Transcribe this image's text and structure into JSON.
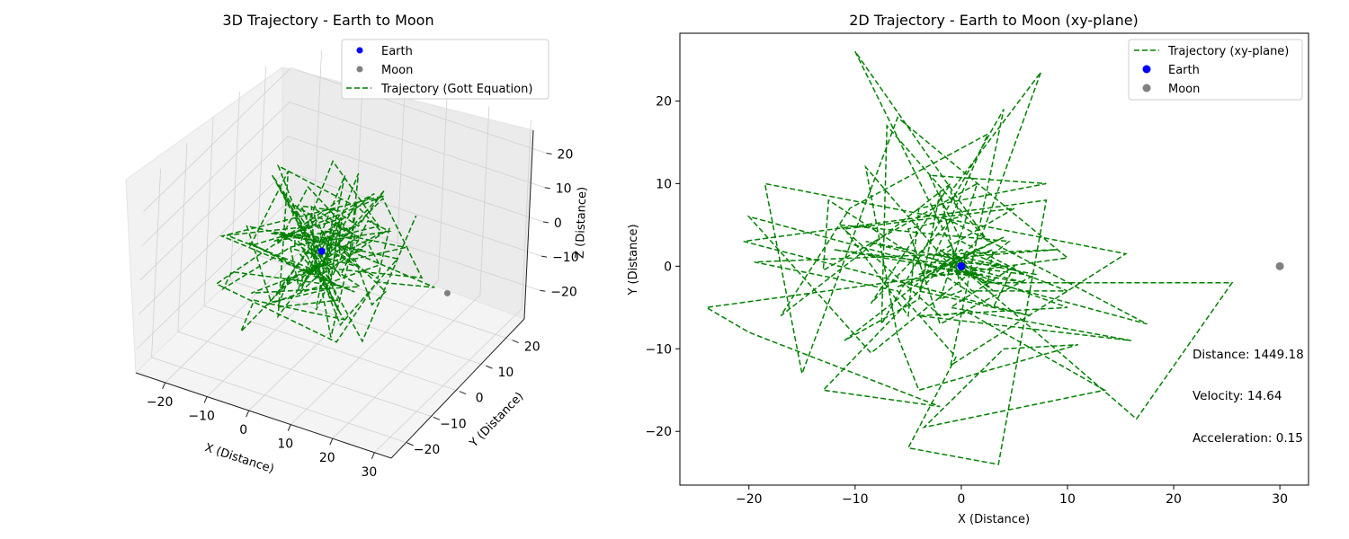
{
  "chart_data": [
    {
      "type": "line",
      "projection": "3d",
      "title": "3D Trajectory - Earth to Moon",
      "xlabel": "X (Distance)",
      "ylabel": "Y (Distance)",
      "zlabel": "Z (Distance)",
      "xlim": [
        -27,
        34
      ],
      "ylim": [
        -26,
        30
      ],
      "zlim": [
        -27,
        28
      ],
      "xticks": [
        -20,
        -10,
        0,
        10,
        20,
        30
      ],
      "yticks": [
        -20,
        -10,
        0,
        10,
        20
      ],
      "zticks": [
        -20,
        -10,
        0,
        10,
        20
      ],
      "grid": true,
      "legend_position": "top-right",
      "legend": [
        "Earth",
        "Moon",
        "Trajectory (Gott Equation)"
      ],
      "bodies": [
        {
          "name": "Earth",
          "point": [
            0,
            0,
            0
          ],
          "color": "#0000ff"
        },
        {
          "name": "Moon",
          "point": [
            30,
            0,
            0
          ],
          "color": "#808080"
        }
      ],
      "series": [
        {
          "name": "Trajectory (Gott Equation)",
          "color": "#008000",
          "style": "dashed",
          "seed": 7,
          "steps": 130
        }
      ]
    },
    {
      "type": "line",
      "title": "2D Trajectory - Earth to Moon (xy-plane)",
      "xlabel": "X (Distance)",
      "ylabel": "Y (Distance)",
      "xlim": [
        -26.5,
        32.7
      ],
      "ylim": [
        -26.5,
        28.2
      ],
      "xticks": [
        -20,
        -10,
        0,
        10,
        20,
        30
      ],
      "yticks": [
        -20,
        -10,
        0,
        10,
        20
      ],
      "grid": false,
      "legend_position": "top-right",
      "legend": [
        "Trajectory (xy-plane)",
        "Earth",
        "Moon"
      ],
      "bodies": [
        {
          "name": "Earth",
          "point": [
            0,
            0
          ],
          "color": "#0000ff"
        },
        {
          "name": "Moon",
          "point": [
            30,
            0
          ],
          "color": "#808080"
        }
      ],
      "series": [
        {
          "name": "Trajectory (xy-plane)",
          "color": "#008000",
          "style": "dashed",
          "points": [
            [
              0,
              0
            ],
            [
              -10,
              26
            ],
            [
              2.5,
              3
            ],
            [
              -7,
              17
            ],
            [
              -7.5,
              -7
            ],
            [
              4,
              19
            ],
            [
              -1,
              -12
            ],
            [
              15.5,
              1.5
            ],
            [
              -18.5,
              10
            ],
            [
              -15,
              -13
            ],
            [
              -6,
              18
            ],
            [
              10,
              1
            ],
            [
              -24,
              -5
            ],
            [
              -20,
              -8
            ],
            [
              -2,
              -17
            ],
            [
              -13,
              -15
            ],
            [
              -1,
              1
            ],
            [
              9,
              2
            ],
            [
              -19.5,
              0.5
            ],
            [
              -6,
              -3
            ],
            [
              -0.5,
              -11
            ],
            [
              -5,
              -22
            ],
            [
              3.5,
              -24
            ],
            [
              8,
              8
            ],
            [
              -20.5,
              3
            ],
            [
              6.5,
              -6
            ],
            [
              -4,
              -3
            ],
            [
              2.5,
              16
            ],
            [
              -10.5,
              7
            ],
            [
              -17,
              -6
            ],
            [
              -1,
              10
            ],
            [
              -8.5,
              -4.5
            ],
            [
              -1,
              5.5
            ],
            [
              17.5,
              -7
            ],
            [
              -20,
              6
            ],
            [
              -8.5,
              -10.5
            ],
            [
              4.5,
              3
            ],
            [
              -11.5,
              5
            ],
            [
              -2,
              -6
            ],
            [
              0.5,
              -5.5
            ],
            [
              13.5,
              -15
            ],
            [
              -3.5,
              -19.5
            ],
            [
              4,
              -10
            ],
            [
              11,
              -9.5
            ],
            [
              -4,
              -15
            ],
            [
              -6,
              -8.5
            ],
            [
              -9,
              12
            ],
            [
              1,
              -3
            ],
            [
              10,
              -3
            ],
            [
              0,
              2
            ],
            [
              -11,
              -9
            ],
            [
              -4,
              -4
            ],
            [
              -2,
              9
            ],
            [
              0,
              -3
            ],
            [
              -2,
              -4
            ],
            [
              1.5,
              10
            ],
            [
              -13,
              -0.5
            ],
            [
              -12.5,
              8
            ],
            [
              3,
              -5
            ],
            [
              5,
              0
            ],
            [
              -1,
              -5
            ],
            [
              16,
              -9
            ],
            [
              -4,
              -6
            ],
            [
              10,
              -5
            ],
            [
              -3,
              1
            ],
            [
              5,
              7
            ],
            [
              -11,
              4.5
            ],
            [
              -5,
              -6
            ],
            [
              -4,
              7
            ],
            [
              8,
              10
            ],
            [
              -3,
              11
            ],
            [
              0,
              3
            ],
            [
              6,
              -1
            ],
            [
              -12,
              2
            ],
            [
              2,
              -1
            ],
            [
              -3,
              -1
            ],
            [
              4,
              3.5
            ],
            [
              -6,
              -2.5
            ],
            [
              -1,
              -0.5
            ],
            [
              2,
              4
            ],
            [
              7.5,
              23.5
            ],
            [
              -1,
              9
            ],
            [
              0,
              6
            ],
            [
              -5,
              4.5
            ],
            [
              -2,
              -7
            ],
            [
              7,
              -1
            ],
            [
              -9,
              3
            ],
            [
              6,
              -2
            ],
            [
              -3,
              0
            ],
            [
              1,
              -1
            ],
            [
              -2,
              2
            ],
            [
              3,
              -3
            ],
            [
              0,
              1
            ],
            [
              -1,
              0
            ],
            [
              2.5,
              -2
            ],
            [
              3,
              2
            ],
            [
              -4,
              -1
            ],
            [
              -1,
              2
            ],
            [
              2,
              -2
            ],
            [
              25.5,
              -2
            ],
            [
              16.5,
              -18.5
            ],
            [
              -1.5,
              1.5
            ],
            [
              4,
              0
            ],
            [
              -0.5,
              0.5
            ]
          ]
        }
      ],
      "annotations": [
        {
          "label": "Distance:",
          "value": "1449.18"
        },
        {
          "label": "Velocity:",
          "value": "14.64"
        },
        {
          "label": "Acceleration:",
          "value": "0.15"
        }
      ]
    }
  ]
}
